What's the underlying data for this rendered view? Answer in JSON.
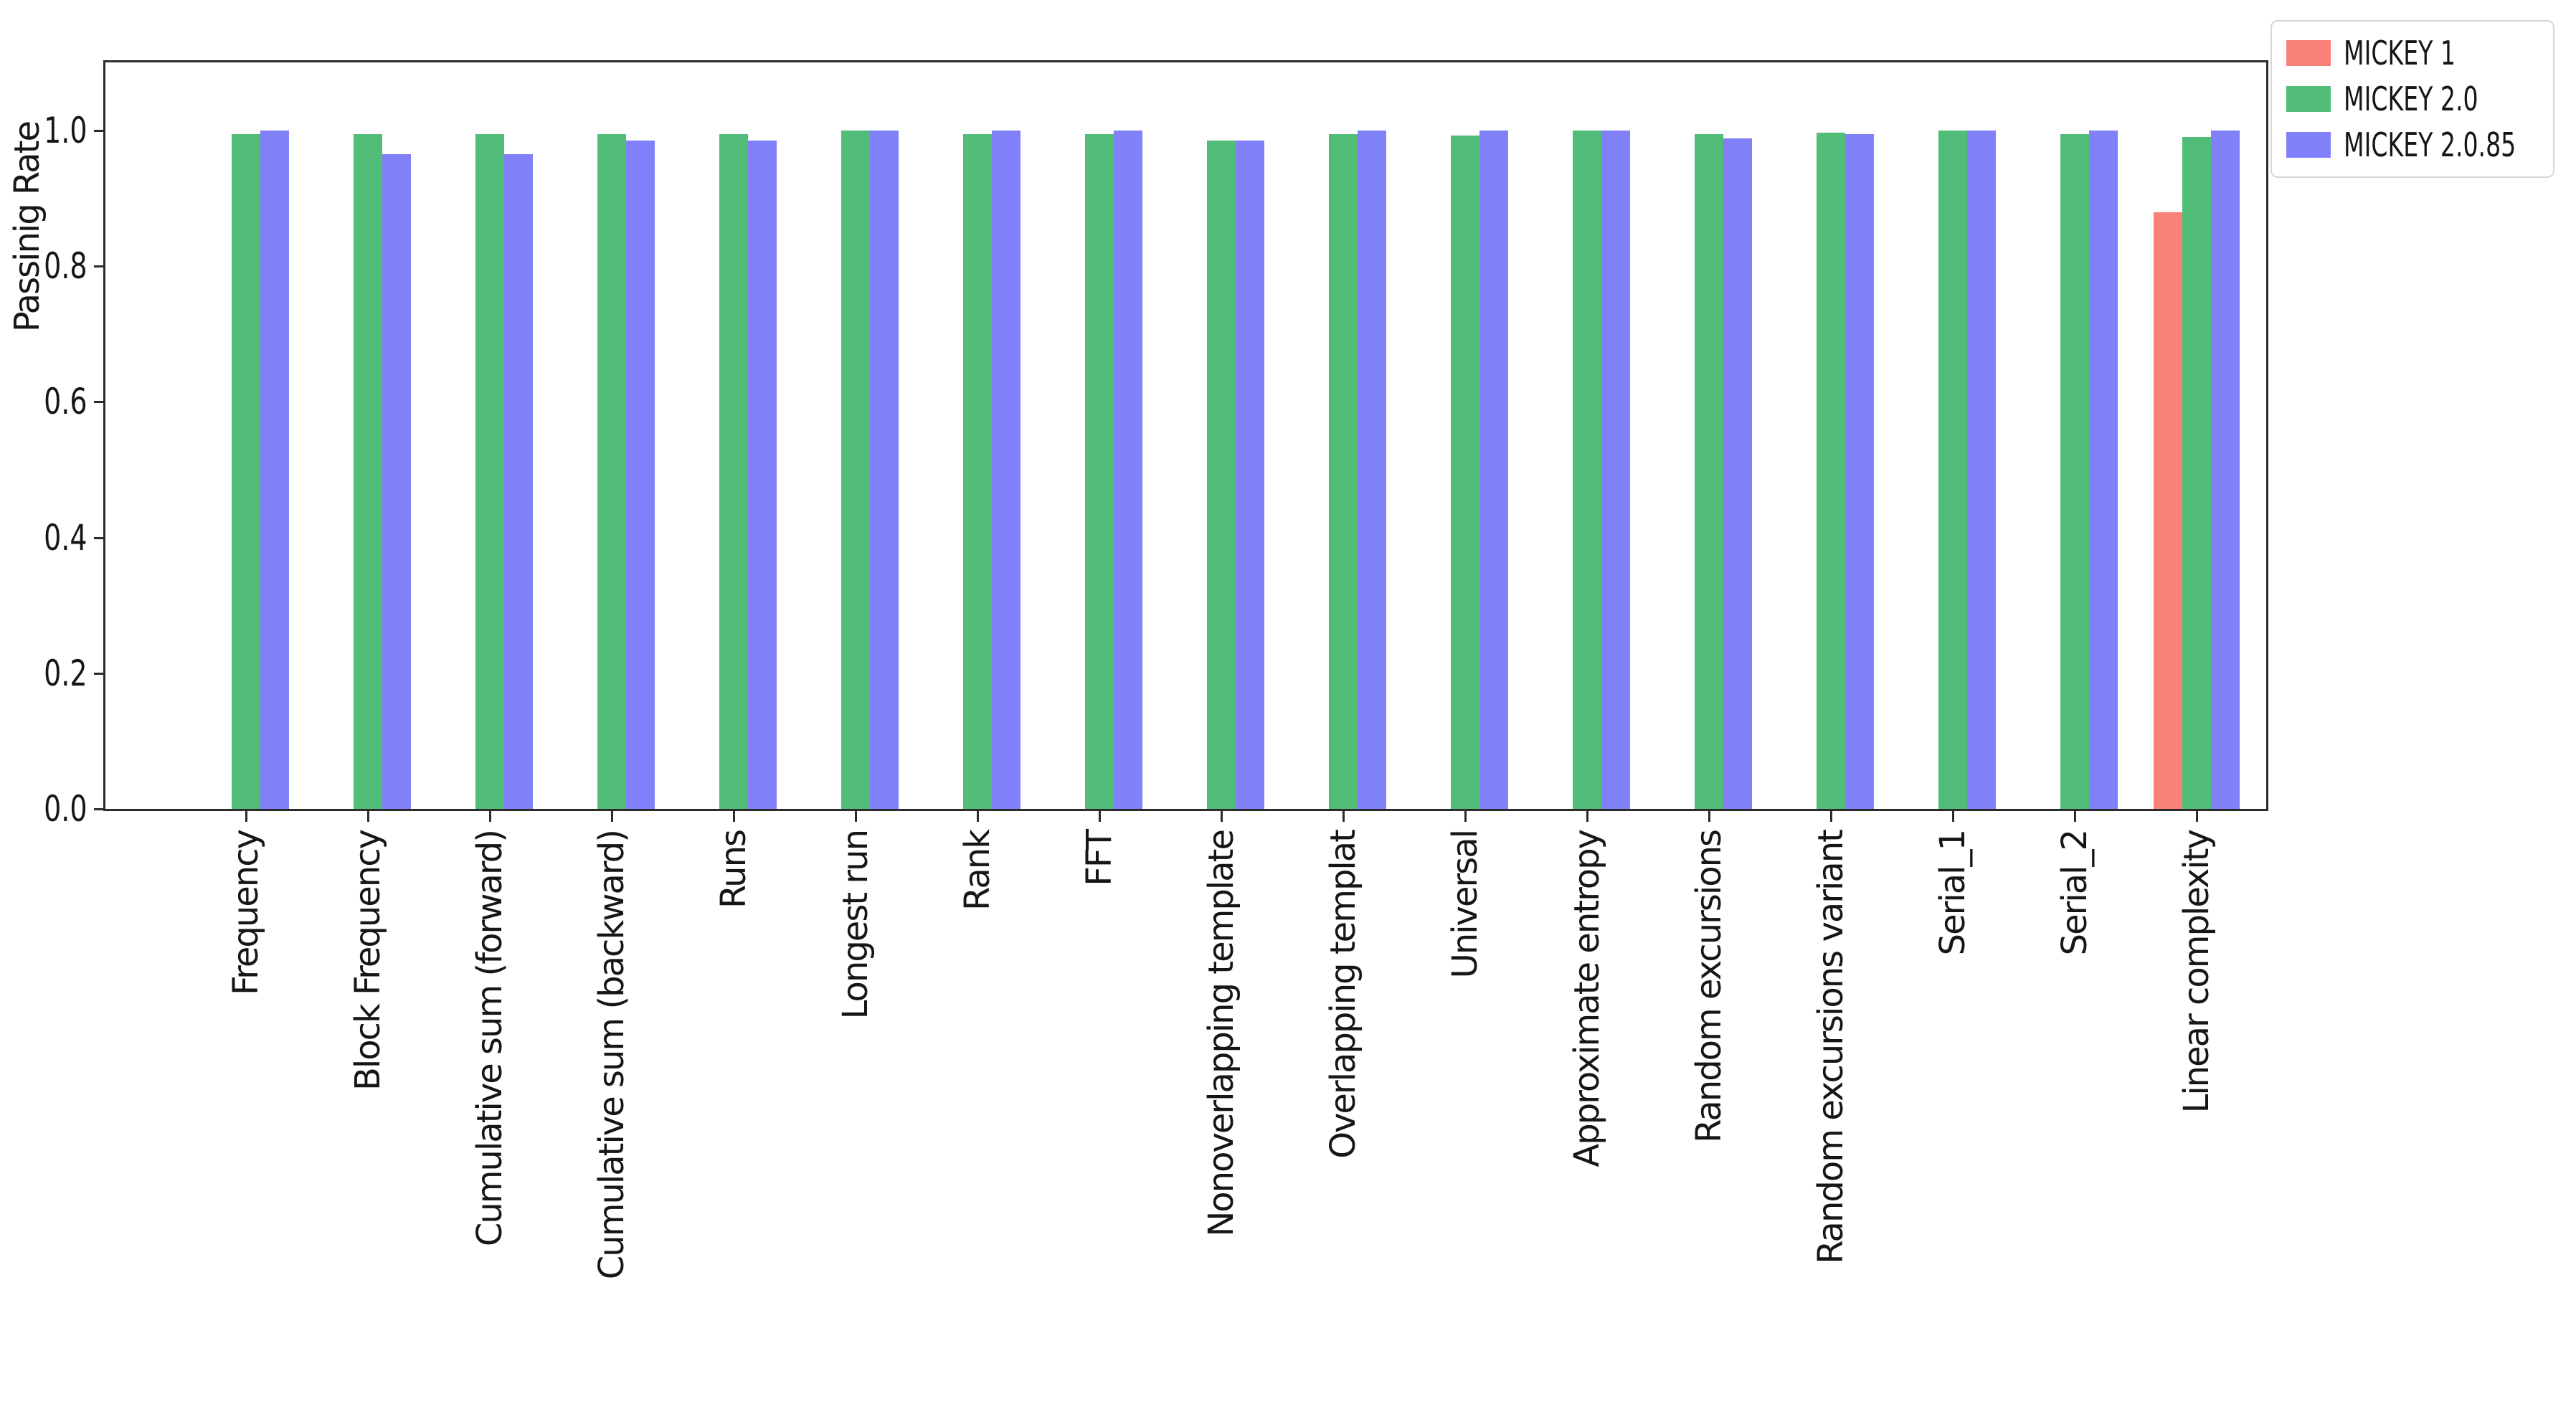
{
  "figure": {
    "background": "#ffffff",
    "axis_color": "#2b2b2b"
  },
  "chart_data": {
    "type": "bar",
    "title": "",
    "xlabel": "",
    "ylabel": "Passinig Rate",
    "ylim": [
      0.0,
      1.1
    ],
    "yticks": [
      "0.0",
      "0.2",
      "0.4",
      "0.6",
      "0.8",
      "1.0"
    ],
    "grid": false,
    "legend_position": "upper right outside plot",
    "x_tick_rotation": 90,
    "categories": [
      "Frequency",
      "Block Frequency",
      "Cumulative sum (forward)",
      "Cumulative sum (backward)",
      "Runs",
      "Longest run",
      "Rank",
      "FFT",
      "Nonoverlapping template",
      "Overlapping templat",
      "Universal",
      "Approximate entropy",
      "Random excursions",
      "Random excursions variant",
      "Serial_1",
      "Serial_2",
      "Linear complexity"
    ],
    "series": [
      {
        "name": "MICKEY 1",
        "color": "#fa817a",
        "values": [
          0,
          0,
          0,
          0,
          0,
          0,
          0,
          0,
          0,
          0,
          0,
          0,
          0,
          0,
          0,
          0,
          0.88
        ]
      },
      {
        "name": "MICKEY 2.0",
        "color": "#52bd79",
        "values": [
          0.995,
          0.995,
          0.995,
          0.995,
          0.995,
          1.0,
          0.995,
          0.995,
          0.985,
          0.995,
          0.993,
          1.0,
          0.995,
          0.997,
          1.0,
          0.995,
          0.99
        ]
      },
      {
        "name": "MICKEY 2.0.85",
        "color": "#8081f8",
        "values": [
          1.0,
          0.965,
          0.965,
          0.985,
          0.985,
          1.0,
          1.0,
          1.0,
          0.985,
          1.0,
          1.0,
          1.0,
          0.988,
          0.995,
          1.0,
          1.0,
          1.0
        ]
      }
    ]
  }
}
